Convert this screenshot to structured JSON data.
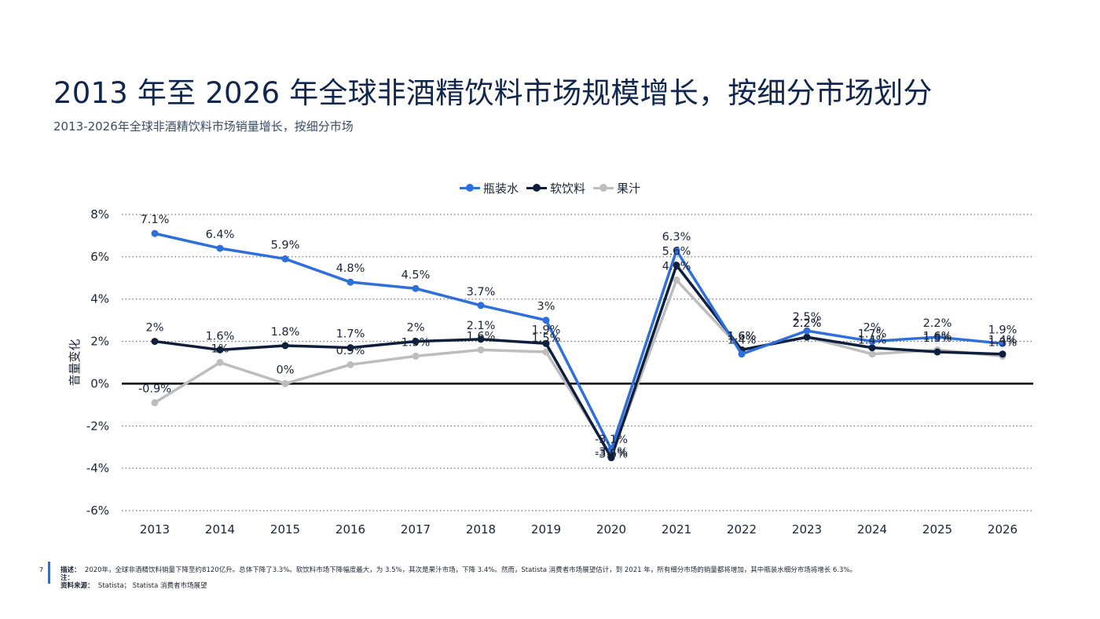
{
  "title": "2013 年至 2026 年全球非酒精饮料市场规模增长，按细分市场划分",
  "subtitle": "2013-2026年全球非酒精饮料市场销量增长，按细分市场",
  "footer": {
    "page_number": "7",
    "desc_label": "描述：",
    "desc_text": "2020年，全球非酒精饮料销量下降至约8120亿升。总体下降了3.3%。软饮料市场下降幅度最大，为 3.5%，其次是果汁市场，下降 3.4%。然而，Statista 消费者市场展望估计，到 2021 年，所有细分市场的销量都将增加，其中瓶装水细分市场将增长 6.3%。",
    "note_label": "注：",
    "source_label": "资料来源：",
    "source_text": "Statista；  Statista 消费者市场展望"
  },
  "chart_data": {
    "type": "line",
    "x": [
      "2013",
      "2014",
      "2015",
      "2016",
      "2017",
      "2018",
      "2019",
      "2020",
      "2021",
      "2022",
      "2023",
      "2024",
      "2025",
      "2026"
    ],
    "ylabel": "音量变化",
    "ylim": [
      -6,
      8
    ],
    "yticks": [
      -6,
      -4,
      -2,
      0,
      2,
      4,
      6,
      8
    ],
    "ytick_labels": [
      "-6%",
      "-4%",
      "-2%",
      "0%",
      "2%",
      "4%",
      "6%",
      "8%"
    ],
    "grid": "dotted horizontal",
    "legend_position": "top-center",
    "series": [
      {
        "name": "瓶装水",
        "color": "#2f6fdc",
        "values": [
          7.1,
          6.4,
          5.9,
          4.8,
          4.5,
          3.7,
          3.0,
          -3.1,
          6.3,
          1.4,
          2.5,
          2.0,
          2.2,
          1.9
        ],
        "labels": [
          "7.1%",
          "6.4%",
          "5.9%",
          "4.8%",
          "4.5%",
          "3.7%",
          "3%",
          "-3.1%",
          "6.3%",
          "1.4%",
          "2.5%",
          "2%",
          "2.2%",
          "1.9%"
        ]
      },
      {
        "name": "软饮料",
        "color": "#0d1f3c",
        "values": [
          2.0,
          1.6,
          1.8,
          1.7,
          2.0,
          2.1,
          1.9,
          -3.5,
          5.6,
          1.6,
          2.2,
          1.7,
          1.5,
          1.4
        ],
        "labels": [
          "2%",
          "1.6%",
          "1.8%",
          "1.7%",
          "2%",
          "2.1%",
          "1.9%",
          "-3.5%",
          "5.6%",
          "1.6%",
          "2.2%",
          "1.7%",
          "1.5%",
          "1.4%"
        ]
      },
      {
        "name": "果汁",
        "color": "#bdbdbd",
        "values": [
          -0.9,
          1.0,
          0.0,
          0.9,
          1.3,
          1.6,
          1.5,
          -3.4,
          4.9,
          1.6,
          2.2,
          1.4,
          1.6,
          1.3
        ],
        "labels": [
          "-0.9%",
          "1%",
          "0%",
          "0.9%",
          "1.3%",
          "1.6%",
          "1.5%",
          "-3.4%",
          "4.9%",
          "1.6%",
          "2.2%",
          "1.4%",
          "1.6%",
          "1.3%"
        ]
      }
    ]
  }
}
